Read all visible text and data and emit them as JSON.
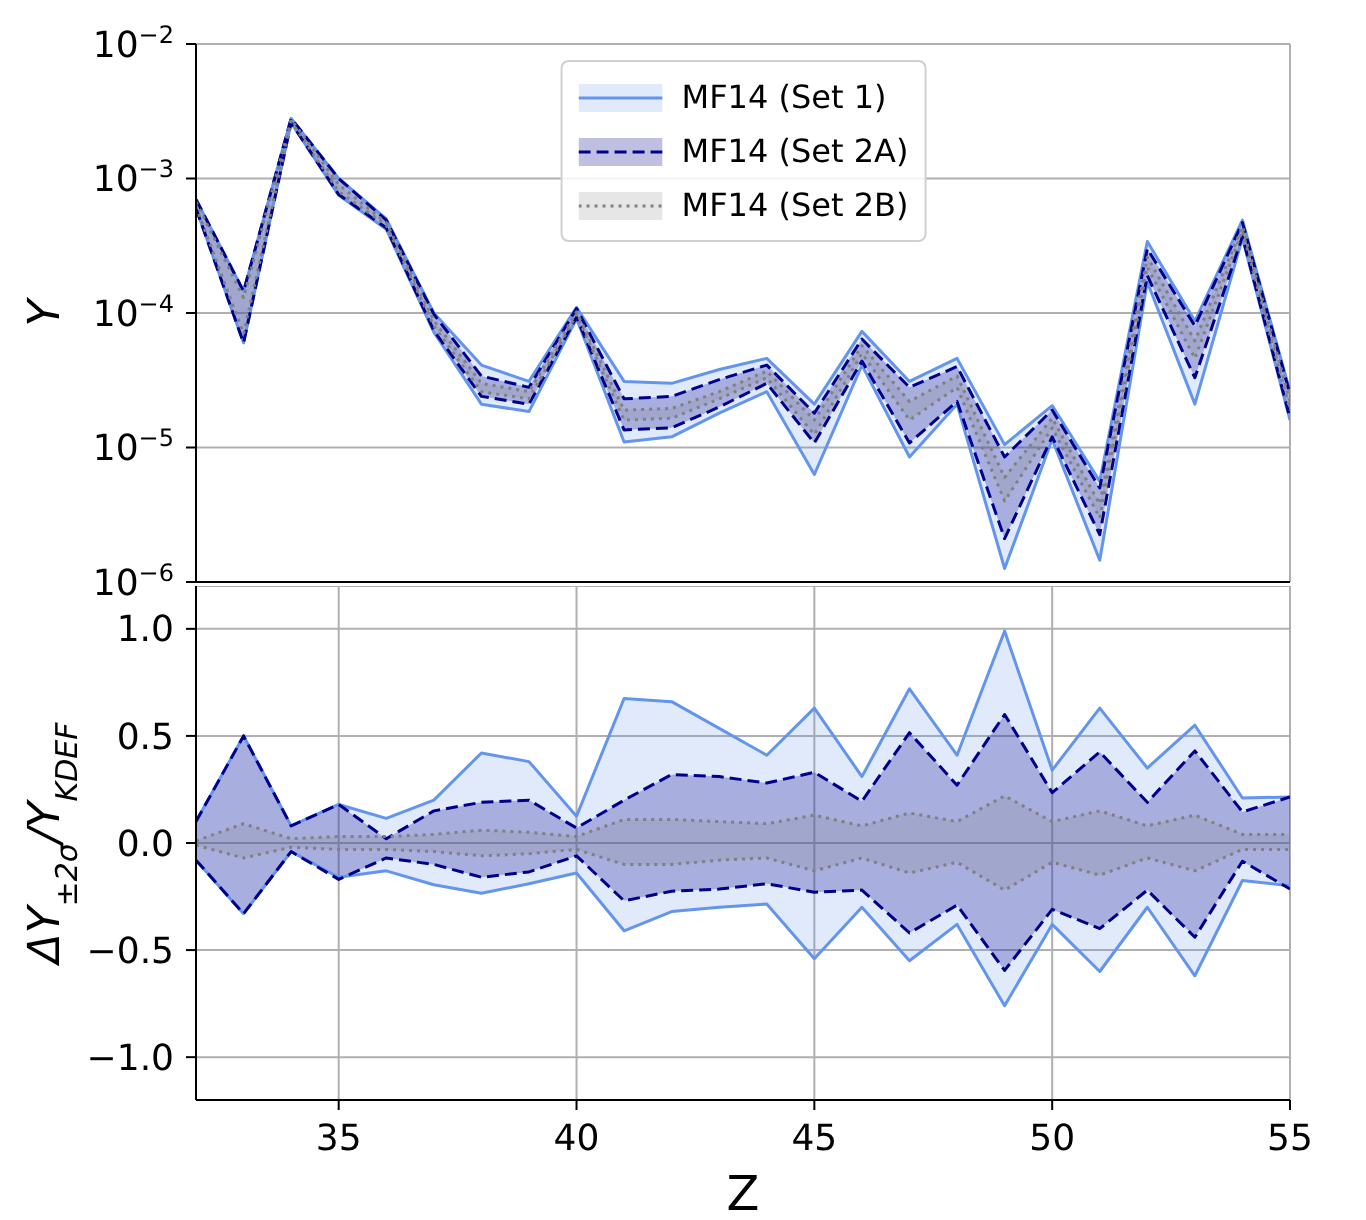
{
  "chart_data": [
    {
      "type": "line",
      "ylabel": "Y",
      "x": [
        32,
        33,
        34,
        35,
        36,
        37,
        38,
        39,
        40,
        41,
        42,
        43,
        44,
        45,
        46,
        47,
        48,
        49,
        50,
        51,
        52,
        53,
        54,
        55
      ],
      "xlim": [
        32,
        55
      ],
      "xticks": [
        35,
        40,
        45,
        50,
        55
      ],
      "ylim": [
        1e-06,
        0.01
      ],
      "yticks": [
        {
          "value": 1e-06,
          "label": "10$^{−6}$"
        },
        {
          "value": 1e-05,
          "label": "10$^{−5}$"
        },
        {
          "value": 0.0001,
          "label": "10$^{−4}$"
        },
        {
          "value": 0.001,
          "label": "10$^{−3}$"
        },
        {
          "value": 0.01,
          "label": "10$^{−2}$"
        }
      ],
      "log": "y",
      "grid": true,
      "legend": "top",
      "tick_labels": "y",
      "series": [
        {
          "type": "area",
          "name": "MF14 (Set 1)",
          "color": "#6495ed",
          "line_style": "solid",
          "values": [
            0.0007,
            0.000145,
            0.0028,
            0.001,
            0.0005,
            0.0001,
            4.1e-05,
            3.1e-05,
            0.00011,
            3.1e-05,
            3e-05,
            3.8e-05,
            4.6e-05,
            2.1e-05,
            7.3e-05,
            3.1e-05,
            4.6e-05,
            1.05e-05,
            2.05e-05,
            5.6e-06,
            0.00034,
            8.7e-05,
            0.00049,
            2.6e-05
          ]
        },
        {
          "color": "#6495ed",
          "line_style": "solid",
          "values": [
            0.0006,
            6e-05,
            0.0026,
            0.00075,
            0.00042,
            7.2e-05,
            2.1e-05,
            1.85e-05,
            9.1e-05,
            1.1e-05,
            1.2e-05,
            1.8e-05,
            2.6e-05,
            6.3e-06,
            4.1e-05,
            8.5e-06,
            2.1e-05,
            1.26e-06,
            1.15e-05,
            1.45e-06,
            0.00017,
            2.1e-05,
            0.00036,
            1.6e-05
          ]
        },
        {
          "type": "area",
          "name": "MF14 (Set 2A)",
          "color": "#00008b",
          "line_style": "dashed",
          "values": [
            0.0007,
            0.000145,
            0.0028,
            0.001,
            0.00049,
            9.8e-05,
            3.4e-05,
            2.8e-05,
            0.000108,
            2.3e-05,
            2.4e-05,
            3.2e-05,
            4.1e-05,
            1.8e-05,
            6.4e-05,
            2.8e-05,
            4e-05,
            8.5e-06,
            1.9e-05,
            5e-06,
            0.0003,
            8e-05,
            0.00047,
            2.5e-05
          ]
        },
        {
          "color": "#00008b",
          "line_style": "dashed",
          "values": [
            0.0006,
            6e-05,
            0.0026,
            0.00076,
            0.00043,
            7.4e-05,
            2.4e-05,
            2.1e-05,
            9.3e-05,
            1.35e-05,
            1.4e-05,
            2e-05,
            3e-05,
            1.08e-05,
            4.4e-05,
            1.08e-05,
            2.2e-05,
            2.1e-06,
            1.2e-05,
            2.25e-06,
            0.00019,
            3.3e-05,
            0.00037,
            1.65e-05
          ]
        },
        {
          "type": "area",
          "name": "MF14 (Set 2B)",
          "color": "#808080",
          "line_style": "dotted",
          "values": [
            0.00067,
            0.00013,
            0.00275,
            0.0009,
            0.00047,
            8.8e-05,
            3e-05,
            2.6e-05,
            0.000102,
            1.9e-05,
            1.95e-05,
            2.6e-05,
            3.7e-05,
            1.6e-05,
            5.7e-05,
            2.2e-05,
            3.4e-05,
            6e-06,
            1.65e-05,
            3.8e-06,
            0.00026,
            6.2e-05,
            0.00044,
            2.2e-05
          ]
        },
        {
          "color": "#808080",
          "line_style": "dotted",
          "values": [
            0.00062,
            7e-05,
            0.00265,
            0.0008,
            0.00045,
            8e-05,
            2.6e-05,
            2.3e-05,
            9.7e-05,
            1.6e-05,
            1.65e-05,
            2.3e-05,
            3.3e-05,
            1.25e-05,
            5e-05,
            1.6e-05,
            2.8e-05,
            4e-06,
            1.4e-05,
            3e-06,
            0.00022,
            4.6e-05,
            0.00041,
            1.9e-05
          ]
        }
      ]
    },
    {
      "type": "area",
      "xlabel": "Z",
      "ylabel": "ΔY$_{±2σ}$/Y$_{KDEF}$",
      "x": [
        32,
        33,
        34,
        35,
        36,
        37,
        38,
        39,
        40,
        41,
        42,
        43,
        44,
        45,
        46,
        47,
        48,
        49,
        50,
        51,
        52,
        53,
        54,
        55
      ],
      "xlim": [
        32,
        55
      ],
      "xticks": [
        35,
        40,
        45,
        50,
        55
      ],
      "ylim": [
        -1.2,
        1.2
      ],
      "yticks": [
        {
          "value": -1,
          "label": "−1.0"
        },
        {
          "value": -0.5,
          "label": "−0.5"
        },
        {
          "value": 0,
          "label": "0.0"
        },
        {
          "value": 0.5,
          "label": "0.5"
        },
        {
          "value": 1,
          "label": "1.0"
        }
      ],
      "grid": true,
      "series": [
        {
          "color": "#6495ed",
          "line_style": "solid",
          "values": [
            0.1,
            0.5,
            0.08,
            0.18,
            0.115,
            0.2,
            0.42,
            0.38,
            0.125,
            0.675,
            0.66,
            0.535,
            0.41,
            0.63,
            0.31,
            0.72,
            0.41,
            0.99,
            0.34,
            0.63,
            0.35,
            0.55,
            0.21,
            0.215
          ]
        },
        {
          "color": "#6495ed",
          "line_style": "solid",
          "values": [
            -0.08,
            -0.33,
            -0.04,
            -0.16,
            -0.13,
            -0.195,
            -0.235,
            -0.19,
            -0.14,
            -0.41,
            -0.32,
            -0.3,
            -0.285,
            -0.54,
            -0.3,
            -0.55,
            -0.38,
            -0.76,
            -0.38,
            -0.6,
            -0.3,
            -0.62,
            -0.175,
            -0.2
          ]
        },
        {
          "color": "#00008b",
          "line_style": "dashed",
          "values": [
            0.1,
            0.5,
            0.08,
            0.18,
            0.02,
            0.15,
            0.19,
            0.2,
            0.07,
            0.2,
            0.32,
            0.31,
            0.28,
            0.33,
            0.195,
            0.515,
            0.27,
            0.6,
            0.235,
            0.425,
            0.19,
            0.43,
            0.145,
            0.215
          ]
        },
        {
          "color": "#00008b",
          "line_style": "dashed",
          "values": [
            -0.08,
            -0.33,
            -0.04,
            -0.17,
            -0.07,
            -0.1,
            -0.16,
            -0.135,
            -0.06,
            -0.27,
            -0.225,
            -0.215,
            -0.19,
            -0.23,
            -0.22,
            -0.42,
            -0.29,
            -0.595,
            -0.31,
            -0.4,
            -0.22,
            -0.44,
            -0.085,
            -0.215
          ]
        },
        {
          "color": "#808080",
          "line_style": "dotted",
          "values": [
            0.01,
            0.09,
            0.02,
            0.03,
            0.03,
            0.04,
            0.06,
            0.05,
            0.03,
            0.11,
            0.11,
            0.1,
            0.09,
            0.13,
            0.08,
            0.14,
            0.1,
            0.22,
            0.1,
            0.15,
            0.08,
            0.13,
            0.04,
            0.04
          ]
        },
        {
          "color": "#808080",
          "line_style": "dotted",
          "values": [
            -0.01,
            -0.07,
            -0.02,
            -0.03,
            -0.03,
            -0.04,
            -0.06,
            -0.05,
            -0.03,
            -0.1,
            -0.1,
            -0.08,
            -0.07,
            -0.13,
            -0.07,
            -0.14,
            -0.09,
            -0.22,
            -0.09,
            -0.15,
            -0.07,
            -0.13,
            -0.03,
            -0.03
          ]
        }
      ]
    }
  ]
}
